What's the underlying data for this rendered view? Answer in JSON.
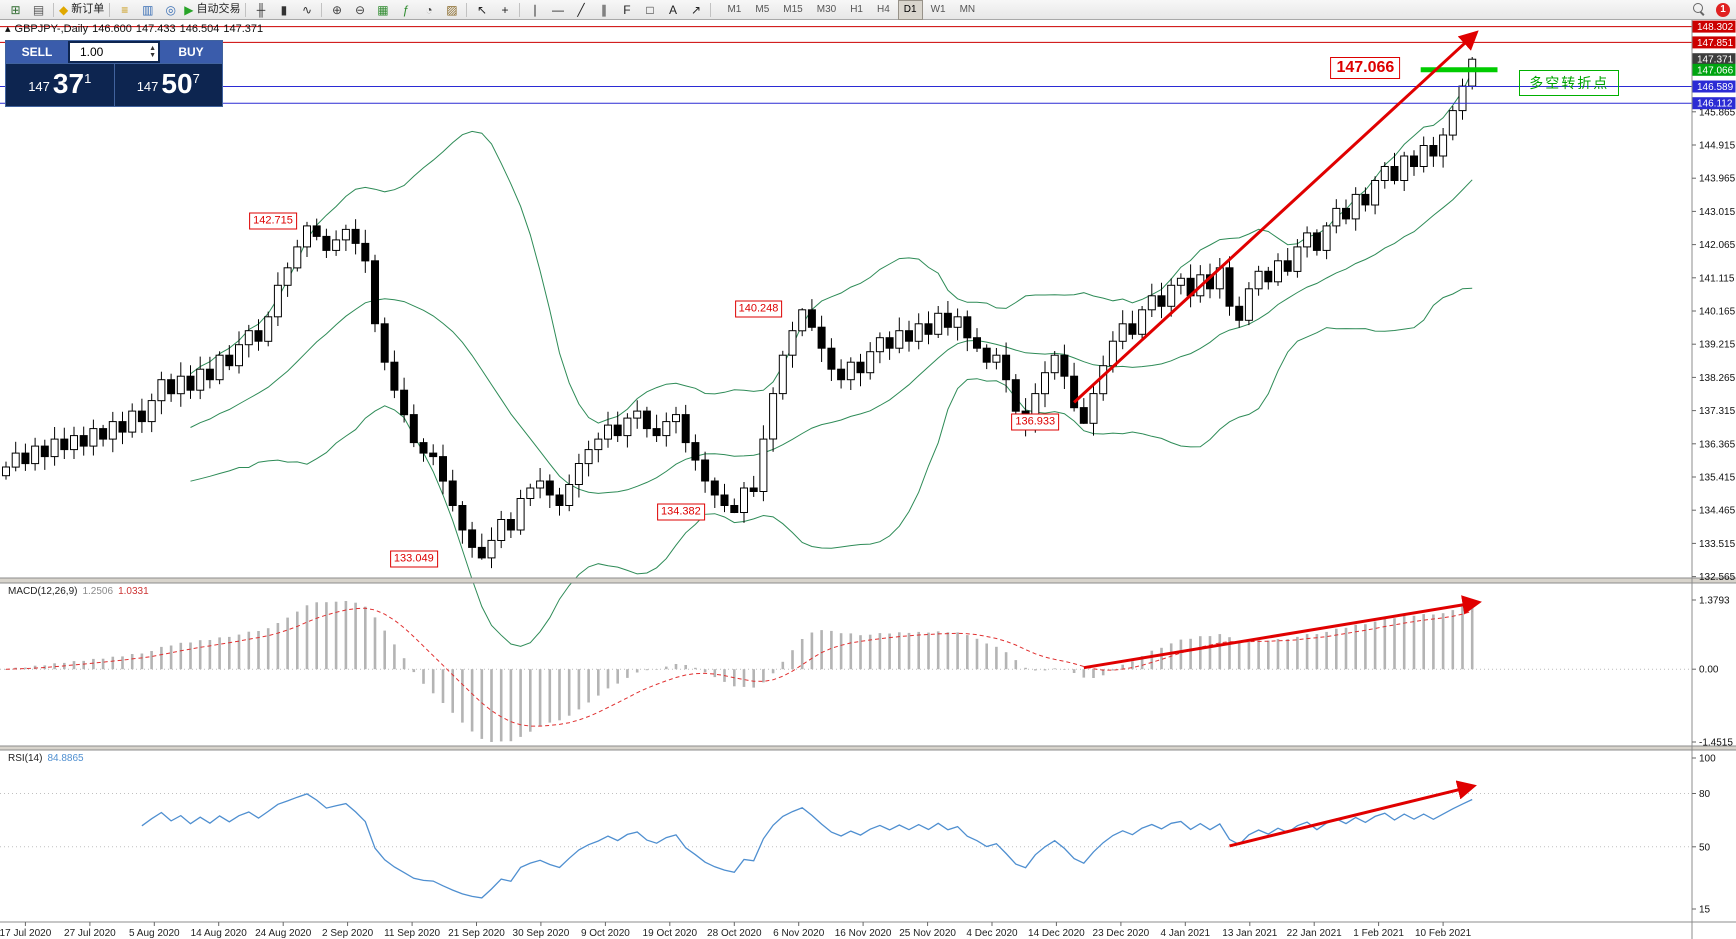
{
  "window": {
    "badge": "1"
  },
  "toolbar": {
    "buttons": [
      {
        "type": "icon",
        "name": "new-chart-icon",
        "glyph": "⊞",
        "color": "#2f6b2f"
      },
      {
        "type": "icon",
        "name": "profiles-icon",
        "glyph": "▤",
        "color": "#555555"
      },
      {
        "type": "sep"
      },
      {
        "type": "labeled",
        "name": "new-order-button",
        "glyph": "◆",
        "glyph_color": "#e0a800",
        "label": "新订单"
      },
      {
        "type": "sep"
      },
      {
        "type": "icon",
        "name": "market-watch-icon",
        "glyph": "≡",
        "color": "#c8950a"
      },
      {
        "type": "icon",
        "name": "data-window-icon",
        "glyph": "▥",
        "color": "#3a6fb5"
      },
      {
        "type": "icon",
        "name": "navigator-icon",
        "glyph": "◎",
        "color": "#3a6fb5"
      },
      {
        "type": "labeled",
        "name": "autotrading-button",
        "glyph": "▶",
        "glyph_color": "#28a428",
        "label": "自动交易"
      },
      {
        "type": "sep"
      },
      {
        "type": "icon",
        "name": "bars-chart-icon",
        "glyph": "╫",
        "color": "#333333"
      },
      {
        "type": "icon",
        "name": "candles-chart-icon",
        "glyph": "▮",
        "color": "#333333"
      },
      {
        "type": "icon",
        "name": "line-chart-icon",
        "glyph": "∿",
        "color": "#333333"
      },
      {
        "type": "sep"
      },
      {
        "type": "icon",
        "name": "zoom-in-icon",
        "glyph": "⊕",
        "color": "#444444"
      },
      {
        "type": "icon",
        "name": "zoom-out-icon",
        "glyph": "⊖",
        "color": "#444444"
      },
      {
        "type": "icon",
        "name": "tile-windows-icon",
        "glyph": "▦",
        "color": "#2e8b2e"
      },
      {
        "type": "icon",
        "name": "indicators-icon",
        "glyph": "ƒ",
        "color": "#2e8b2e"
      },
      {
        "type": "icon",
        "name": "periods-icon",
        "glyph": "◔",
        "color": "#444444"
      },
      {
        "type": "icon",
        "name": "templates-icon",
        "glyph": "▨",
        "color": "#8a6a2a"
      },
      {
        "type": "sep"
      },
      {
        "type": "icon",
        "name": "cursor-icon",
        "glyph": "↖",
        "color": "#222222"
      },
      {
        "type": "icon",
        "name": "crosshair-icon",
        "glyph": "+",
        "color": "#222222"
      },
      {
        "type": "sep"
      },
      {
        "type": "icon",
        "name": "vertical-line-icon",
        "glyph": "∣",
        "color": "#222222"
      },
      {
        "type": "icon",
        "name": "horizontal-line-icon",
        "glyph": "―",
        "color": "#222222"
      },
      {
        "type": "icon",
        "name": "trendline-icon",
        "glyph": "╱",
        "color": "#222222"
      },
      {
        "type": "icon",
        "name": "channel-icon",
        "glyph": "∥",
        "color": "#222222"
      },
      {
        "type": "icon",
        "name": "fibonacci-icon",
        "glyph": "F",
        "color": "#222222"
      },
      {
        "type": "icon",
        "name": "shapes-icon",
        "glyph": "□",
        "color": "#222222"
      },
      {
        "type": "icon",
        "name": "text-icon",
        "glyph": "A",
        "color": "#222222"
      },
      {
        "type": "icon",
        "name": "arrows-icon",
        "glyph": "↗",
        "color": "#222222"
      },
      {
        "type": "sep"
      }
    ],
    "timeframes": [
      "M1",
      "M5",
      "M15",
      "M30",
      "H1",
      "H4",
      "D1",
      "W1",
      "MN"
    ],
    "active_timeframe": "D1"
  },
  "quote_bar": {
    "collapse_glyph": "▴",
    "title": "GBPJPY-,Daily",
    "open": "146.600",
    "high": "147.433",
    "low": "146.504",
    "close": "147.371"
  },
  "trade_panel": {
    "sell_label": "SELL",
    "buy_label": "BUY",
    "volume": "1.00",
    "spin_up": "▲",
    "spin_down": "▼",
    "sell_small": "147",
    "sell_big": "37",
    "sell_sup": "1",
    "buy_small": "147",
    "buy_big": "50",
    "buy_sup": "7"
  },
  "chart_data": {
    "type": "candlestick",
    "symbol": "GBPJPY-,Daily",
    "x_labels": [
      "17 Jul 2020",
      "27 Jul 2020",
      "5 Aug 2020",
      "14 Aug 2020",
      "24 Aug 2020",
      "2 Sep 2020",
      "11 Sep 2020",
      "21 Sep 2020",
      "30 Sep 2020",
      "9 Oct 2020",
      "19 Oct 2020",
      "28 Oct 2020",
      "6 Nov 2020",
      "16 Nov 2020",
      "25 Nov 2020",
      "4 Dec 2020",
      "14 Dec 2020",
      "23 Dec 2020",
      "4 Jan 2021",
      "13 Jan 2021",
      "22 Jan 2021",
      "1 Feb 2021",
      "10 Feb 2021"
    ],
    "closes": [
      135.7,
      136.1,
      135.8,
      136.3,
      136.0,
      136.5,
      136.2,
      136.6,
      136.3,
      136.8,
      136.5,
      137.0,
      136.7,
      137.3,
      137.0,
      137.6,
      138.2,
      137.8,
      138.3,
      137.9,
      138.5,
      138.2,
      138.9,
      138.6,
      139.2,
      139.6,
      139.3,
      140.0,
      140.9,
      141.4,
      142.0,
      142.6,
      142.3,
      141.9,
      142.2,
      142.5,
      142.1,
      141.6,
      139.8,
      138.7,
      137.9,
      137.2,
      136.4,
      136.1,
      136.0,
      135.3,
      134.6,
      133.9,
      133.4,
      133.1,
      133.6,
      134.2,
      133.9,
      134.8,
      135.1,
      135.3,
      134.9,
      134.6,
      135.2,
      135.8,
      136.2,
      136.5,
      136.9,
      136.6,
      137.1,
      137.3,
      136.8,
      136.6,
      137.0,
      137.2,
      136.4,
      135.9,
      135.3,
      134.9,
      134.6,
      134.4,
      135.1,
      135.0,
      136.5,
      137.8,
      138.9,
      139.6,
      140.2,
      139.7,
      139.1,
      138.5,
      138.2,
      138.7,
      138.4,
      139.0,
      139.4,
      139.1,
      139.6,
      139.3,
      139.8,
      139.5,
      140.1,
      139.7,
      140.0,
      139.4,
      139.1,
      138.7,
      138.9,
      138.2,
      137.3,
      136.95,
      137.8,
      138.4,
      138.9,
      138.3,
      137.4,
      136.95,
      137.8,
      138.6,
      139.3,
      139.8,
      139.5,
      140.2,
      140.6,
      140.3,
      140.9,
      141.1,
      140.6,
      141.2,
      140.8,
      141.4,
      140.3,
      139.9,
      140.8,
      141.3,
      141.0,
      141.6,
      141.3,
      142.0,
      142.4,
      141.9,
      142.6,
      143.1,
      142.8,
      143.5,
      143.2,
      143.9,
      144.3,
      143.9,
      144.6,
      144.3,
      144.9,
      144.6,
      145.2,
      145.9,
      146.6,
      147.371
    ],
    "pinned": {
      "31": {
        "high": 142.715
      },
      "49": {
        "low": 133.049
      },
      "75": {
        "low": 134.382
      },
      "82": {
        "high": 140.248
      },
      "111": {
        "low": 136.933
      },
      "151": {
        "open": 146.6,
        "high": 147.433,
        "low": 146.504
      }
    },
    "candle_colors": {
      "up": "#ffffff",
      "down": "#000000",
      "border": "#000000"
    },
    "price_axis": {
      "ticks": [
        145.865,
        144.915,
        143.965,
        143.015,
        142.065,
        141.115,
        140.165,
        139.215,
        138.265,
        137.315,
        136.365,
        135.415,
        134.465,
        133.515,
        132.565
      ]
    },
    "levels": [
      {
        "price": 148.302,
        "label": "148.302",
        "box": "#cc0000",
        "line_color": "#cc0000",
        "line": true
      },
      {
        "price": 147.851,
        "label": "147.851",
        "box": "#cc0000",
        "line_color": "#cc0000",
        "line": true
      },
      {
        "price": 147.371,
        "label": "147.371",
        "box": "#3d3d3d",
        "line": false
      },
      {
        "price": 147.066,
        "label": "147.066",
        "box": "#00a410",
        "line": false
      },
      {
        "price": 146.589,
        "label": "146.589",
        "box": "#2b2bd4",
        "line_color": "#2b2bd4",
        "line": true
      },
      {
        "price": 146.112,
        "label": "146.112",
        "box": "#2b2bd4",
        "line_color": "#2b2bd4",
        "line": true
      }
    ],
    "green_segment": {
      "price": 147.066,
      "from_i": 145.7,
      "to_i": 153.6,
      "color": "#00cc00"
    },
    "callouts": [
      {
        "text": "142.715",
        "i": 27.5,
        "price": 142.74
      },
      {
        "text": "133.049",
        "i": 42.0,
        "price": 133.07
      },
      {
        "text": "134.382",
        "i": 69.5,
        "price": 134.4
      },
      {
        "text": "140.248",
        "i": 77.5,
        "price": 140.22
      },
      {
        "text": "136.933",
        "i": 106.0,
        "price": 136.99
      },
      {
        "text": "147.066",
        "i": 140.0,
        "price": 147.12,
        "big": true
      }
    ],
    "note_box": {
      "text": "多空转折点",
      "i": 161,
      "price": 146.69
    },
    "trend_arrows": [
      {
        "pane": "main",
        "from": {
          "i": 110,
          "v": 137.55
        },
        "to": {
          "i": 151.3,
          "v": 148.1
        }
      },
      {
        "pane": "macd",
        "from": {
          "i": 111,
          "v": 0.03
        },
        "to": {
          "i": 151.5,
          "v": 1.33
        }
      },
      {
        "pane": "rsi",
        "from": {
          "i": 126,
          "v": 50.5
        },
        "to": {
          "i": 151.0,
          "v": 84.0
        }
      }
    ],
    "arrow_color": "#e00000",
    "bollinger": {
      "period": 20,
      "deviation": 2,
      "color": "#2e8b57"
    },
    "macd": {
      "title": "MACD(12,26,9)",
      "value_main": "1.2506",
      "value_signal": "1.0331",
      "ticks": [
        1.3793,
        0.0,
        -1.4515
      ],
      "tick_labels": [
        "1.3793",
        "0.00",
        "-1.4515"
      ],
      "hist_color": "#b4b4b4",
      "signal_color": "#e03030"
    },
    "rsi": {
      "title": "RSI(14)",
      "value": "84.8865",
      "ticks": [
        100,
        80,
        50,
        15
      ],
      "tick_labels": [
        "100",
        "80",
        "50",
        "15"
      ],
      "levels": [
        80,
        50
      ],
      "color": "#4f8fd0"
    }
  }
}
